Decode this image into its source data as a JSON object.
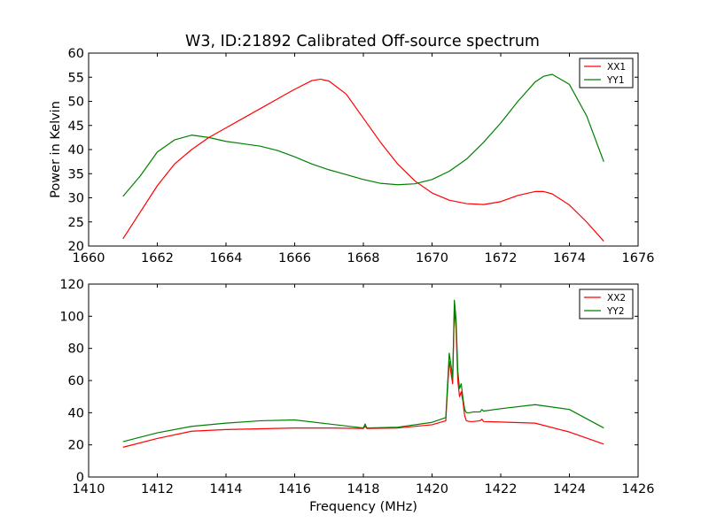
{
  "chart_data": [
    {
      "type": "line",
      "title": "W3, ID:21892 Calibrated Off-source spectrum",
      "xlabel": "",
      "ylabel": "Power in Kelvin",
      "xlim": [
        1660,
        1676
      ],
      "ylim": [
        20,
        60
      ],
      "xticks": [
        "1660",
        "1662",
        "1664",
        "1666",
        "1668",
        "1670",
        "1672",
        "1674",
        "1676"
      ],
      "yticks": [
        "20",
        "25",
        "30",
        "35",
        "40",
        "45",
        "50",
        "55",
        "60"
      ],
      "grid": false,
      "legend_position": "top-right",
      "series": [
        {
          "name": "XX1",
          "color": "#ff0000",
          "x": [
            1661,
            1661.5,
            1662,
            1662.5,
            1663,
            1663.5,
            1664,
            1664.5,
            1665,
            1665.5,
            1666,
            1666.5,
            1666.75,
            1667,
            1667.5,
            1668,
            1668.5,
            1669,
            1669.5,
            1670,
            1670.5,
            1671,
            1671.5,
            1672,
            1672.5,
            1673,
            1673.25,
            1673.5,
            1674,
            1674.5,
            1675
          ],
          "y": [
            21.5,
            27,
            32.5,
            37,
            40,
            42.5,
            44.5,
            46.5,
            48.5,
            50.5,
            52.5,
            54.3,
            54.6,
            54.2,
            51.5,
            46.5,
            41.5,
            37,
            33.5,
            31,
            29.5,
            28.8,
            28.6,
            29.2,
            30.5,
            31.3,
            31.3,
            30.8,
            28.5,
            25,
            21
          ]
        },
        {
          "name": "YY1",
          "color": "#008000",
          "x": [
            1661,
            1661.5,
            1662,
            1662.5,
            1663,
            1663.5,
            1664,
            1664.5,
            1665,
            1665.5,
            1666,
            1666.5,
            1667,
            1667.5,
            1668,
            1668.5,
            1669,
            1669.5,
            1670,
            1670.5,
            1671,
            1671.5,
            1672,
            1672.5,
            1673,
            1673.25,
            1673.5,
            1674,
            1674.5,
            1675
          ],
          "y": [
            30.3,
            34.5,
            39.5,
            42,
            43,
            42.5,
            41.7,
            41.2,
            40.7,
            39.8,
            38.5,
            37,
            35.8,
            34.8,
            33.8,
            33,
            32.7,
            32.9,
            33.8,
            35.5,
            38,
            41.5,
            45.5,
            50,
            54,
            55.2,
            55.6,
            53.5,
            47,
            37.5
          ]
        }
      ]
    },
    {
      "type": "line",
      "title": "",
      "xlabel": "Frequency (MHz)",
      "ylabel": "",
      "xlim": [
        1410,
        1426
      ],
      "ylim": [
        0,
        120
      ],
      "xticks": [
        "1410",
        "1412",
        "1414",
        "1416",
        "1418",
        "1420",
        "1422",
        "1424",
        "1426"
      ],
      "yticks": [
        "0",
        "20",
        "40",
        "60",
        "80",
        "100",
        "120"
      ],
      "grid": false,
      "legend_position": "top-right",
      "series": [
        {
          "name": "XX2",
          "color": "#ff0000",
          "x": [
            1411,
            1412,
            1413,
            1414,
            1415,
            1416,
            1417,
            1418,
            1418.05,
            1418.1,
            1419,
            1420,
            1420.4,
            1420.5,
            1420.55,
            1420.6,
            1420.65,
            1420.7,
            1420.75,
            1420.8,
            1420.85,
            1420.9,
            1420.95,
            1421.0,
            1421.1,
            1421.2,
            1421.4,
            1421.45,
            1421.5,
            1422,
            1423,
            1424,
            1425
          ],
          "y": [
            18.5,
            24,
            28.5,
            29.5,
            30,
            30.5,
            30.5,
            30.2,
            31.5,
            30.2,
            30.5,
            32.5,
            35,
            72,
            65,
            58,
            105,
            92,
            60,
            50,
            53,
            47,
            38,
            35,
            34.5,
            34.5,
            35,
            36,
            34.5,
            34.2,
            33.5,
            28,
            20.5
          ]
        },
        {
          "name": "YY2",
          "color": "#008000",
          "x": [
            1411,
            1412,
            1413,
            1414,
            1415,
            1416,
            1417,
            1418,
            1418.05,
            1418.1,
            1419,
            1420,
            1420.4,
            1420.5,
            1420.55,
            1420.6,
            1420.65,
            1420.7,
            1420.75,
            1420.8,
            1420.85,
            1420.9,
            1420.95,
            1421.0,
            1421.1,
            1421.2,
            1421.4,
            1421.45,
            1421.5,
            1422,
            1423,
            1424,
            1425
          ],
          "y": [
            22,
            27.5,
            31.5,
            33.5,
            35,
            35.5,
            33,
            30.5,
            33,
            30.5,
            31,
            34,
            37,
            77,
            70,
            62,
            110,
            98,
            66,
            55,
            58,
            49,
            42,
            40,
            40,
            40.5,
            40.5,
            42,
            41,
            42.5,
            45,
            42,
            30.5
          ]
        }
      ]
    }
  ]
}
